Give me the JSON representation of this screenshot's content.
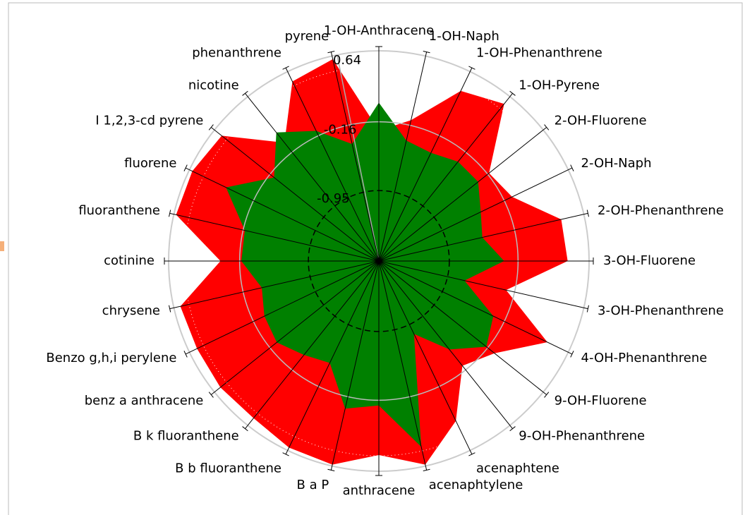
{
  "chart_data": {
    "type": "radar",
    "categories": [
      "1-OH-Anthracene",
      "1-OH-Naph",
      "1-OH-Phenanthrene",
      "1-OH-Pyrene",
      "2-OH-Fluorene",
      "2-OH-Naph",
      "2-OH-Phenanthrene",
      "3-OH-Fluorene",
      "3-OH-Phenanthrene",
      "4-OH-Phenanthrene",
      "9-OH-Fluorene",
      "9-OH-Phenanthrene",
      "acenaphtene",
      "acenaphtylene",
      "anthracene",
      "B a P",
      "B b fluoranthene",
      "B k fluoranthene",
      "benz a anthracene",
      "Benzo g,h,i perylene",
      "chrysene",
      "cotinine",
      "fluoranthene",
      "fluorene",
      "I 1,2,3-cd pyrene",
      "nicotine",
      "phenanthrene",
      "pyrene"
    ],
    "series": [
      {
        "color": "#ff0000",
        "values": [
          -0.26,
          -0.1,
          0.41,
          0.55,
          -0.14,
          -0.06,
          0.39,
          0.41,
          -0.26,
          0.39,
          -0.06,
          -0.22,
          0.28,
          0.64,
          0.47,
          0.64,
          0.62,
          0.55,
          0.57,
          0.56,
          0.58,
          0.06,
          0.63,
          0.62,
          0.55,
          -0.02,
          0.53,
          0.62
        ]
      },
      {
        "color": "#008000",
        "values": [
          0.06,
          -0.34,
          -0.38,
          -0.3,
          -0.3,
          -0.46,
          -0.54,
          -0.32,
          -0.75,
          -0.3,
          -0.18,
          -0.46,
          -0.83,
          0.43,
          -0.1,
          -0.02,
          -0.46,
          -0.38,
          -0.26,
          -0.3,
          -0.38,
          -0.18,
          -0.18,
          0.19,
          -0.22,
          0.13,
          -0.1,
          -0.38
        ]
      }
    ],
    "rlim": [
      -1.76,
      0.64
    ],
    "rticks": [
      -0.95,
      -0.16,
      0.64
    ]
  }
}
